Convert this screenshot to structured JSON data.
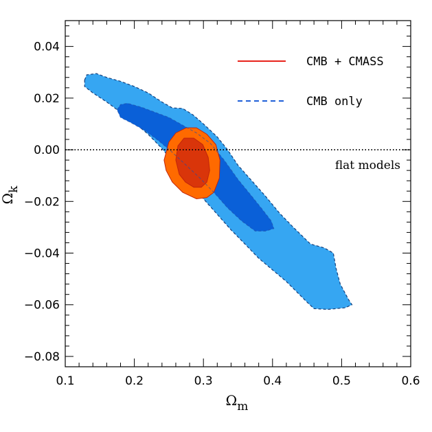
{
  "chart_data": {
    "type": "contour",
    "xlabel": {
      "symbol": "Ω",
      "subscript": "m"
    },
    "ylabel": {
      "symbol": "Ω",
      "subscript": "k"
    },
    "xlim": [
      0.1,
      0.6
    ],
    "ylim": [
      -0.084,
      0.05
    ],
    "xticks": [
      0.1,
      0.2,
      0.3,
      0.4,
      0.5,
      0.6
    ],
    "yticks": [
      -0.08,
      -0.06,
      -0.04,
      -0.02,
      0.0,
      0.02,
      0.04
    ],
    "xtick_labels": [
      "0.1",
      "0.2",
      "0.3",
      "0.4",
      "0.5",
      "0.6"
    ],
    "ytick_labels": [
      "−0.08",
      "−0.06",
      "−0.04",
      "−0.02",
      "0.00",
      "0.02",
      "0.04"
    ],
    "grid": false,
    "legend": {
      "position": "top-right",
      "entries": [
        {
          "label": "CMB + CMASS",
          "style": "solid",
          "color": "#e8221a"
        },
        {
          "label": "CMB only",
          "style": "dashed",
          "color": "#1f5fd8"
        }
      ]
    },
    "reference_line": {
      "y": 0.0,
      "style": "dotted",
      "label": "flat models"
    },
    "series": [
      {
        "name": "CMB only",
        "levels": [
          {
            "level": "outer",
            "color": "#36a6f2",
            "outline": "dashed",
            "polygon": [
              [
                0.128,
                0.027
              ],
              [
                0.131,
                0.029
              ],
              [
                0.145,
                0.0295
              ],
              [
                0.16,
                0.028
              ],
              [
                0.18,
                0.0265
              ],
              [
                0.2,
                0.0245
              ],
              [
                0.22,
                0.022
              ],
              [
                0.24,
                0.0185
              ],
              [
                0.255,
                0.0162
              ],
              [
                0.27,
                0.016
              ],
              [
                0.285,
                0.0135
              ],
              [
                0.3,
                0.01
              ],
              [
                0.32,
                0.005
              ],
              [
                0.335,
                0.0
              ],
              [
                0.35,
                -0.006
              ],
              [
                0.37,
                -0.012
              ],
              [
                0.39,
                -0.018
              ],
              [
                0.41,
                -0.0245
              ],
              [
                0.43,
                -0.03
              ],
              [
                0.455,
                -0.0365
              ],
              [
                0.475,
                -0.038
              ],
              [
                0.488,
                -0.04
              ],
              [
                0.492,
                -0.046
              ],
              [
                0.498,
                -0.052
              ],
              [
                0.51,
                -0.058
              ],
              [
                0.515,
                -0.06
              ],
              [
                0.505,
                -0.0612
              ],
              [
                0.48,
                -0.0618
              ],
              [
                0.46,
                -0.0615
              ],
              [
                0.45,
                -0.059
              ],
              [
                0.435,
                -0.055
              ],
              [
                0.42,
                -0.051
              ],
              [
                0.4,
                -0.0465
              ],
              [
                0.38,
                -0.042
              ],
              [
                0.36,
                -0.0365
              ],
              [
                0.34,
                -0.031
              ],
              [
                0.32,
                -0.025
              ],
              [
                0.3,
                -0.019
              ],
              [
                0.28,
                -0.0125
              ],
              [
                0.26,
                -0.006
              ],
              [
                0.24,
                0.0005
              ],
              [
                0.22,
                0.006
              ],
              [
                0.2,
                0.0105
              ],
              [
                0.18,
                0.0145
              ],
              [
                0.16,
                0.0185
              ],
              [
                0.14,
                0.022
              ],
              [
                0.128,
                0.0245
              ]
            ]
          },
          {
            "level": "inner",
            "color": "#0a60d8",
            "outline": "none",
            "polygon": [
              [
                0.175,
                0.0155
              ],
              [
                0.18,
                0.0175
              ],
              [
                0.19,
                0.018
              ],
              [
                0.21,
                0.0165
              ],
              [
                0.23,
                0.0145
              ],
              [
                0.25,
                0.0125
              ],
              [
                0.27,
                0.0095
              ],
              [
                0.29,
                0.0065
              ],
              [
                0.31,
                0.0025
              ],
              [
                0.33,
                -0.004
              ],
              [
                0.35,
                -0.0115
              ],
              [
                0.37,
                -0.018
              ],
              [
                0.385,
                -0.023
              ],
              [
                0.398,
                -0.0275
              ],
              [
                0.402,
                -0.0305
              ],
              [
                0.39,
                -0.0315
              ],
              [
                0.375,
                -0.0315
              ],
              [
                0.355,
                -0.0275
              ],
              [
                0.335,
                -0.0225
              ],
              [
                0.315,
                -0.0165
              ],
              [
                0.295,
                -0.011
              ],
              [
                0.275,
                -0.006
              ],
              [
                0.255,
                -0.001
              ],
              [
                0.235,
                0.0035
              ],
              [
                0.215,
                0.0075
              ],
              [
                0.195,
                0.0105
              ],
              [
                0.18,
                0.0125
              ]
            ]
          }
        ]
      },
      {
        "name": "CMB + CMASS",
        "levels": [
          {
            "level": "outer",
            "color": "#ff6a00",
            "outline": "solid",
            "polygon": [
              [
                0.243,
                -0.004
              ],
              [
                0.25,
                0.003
              ],
              [
                0.26,
                0.0065
              ],
              [
                0.275,
                0.0085
              ],
              [
                0.29,
                0.0085
              ],
              [
                0.305,
                0.006
              ],
              [
                0.318,
                0.002
              ],
              [
                0.324,
                -0.004
              ],
              [
                0.323,
                -0.011
              ],
              [
                0.315,
                -0.0165
              ],
              [
                0.305,
                -0.0185
              ],
              [
                0.29,
                -0.019
              ],
              [
                0.27,
                -0.0165
              ],
              [
                0.255,
                -0.0125
              ],
              [
                0.246,
                -0.008
              ]
            ]
          },
          {
            "level": "inner",
            "color": "#d9350a",
            "outline": "solid",
            "polygon": [
              [
                0.26,
                -0.004
              ],
              [
                0.263,
                0.0015
              ],
              [
                0.272,
                0.0045
              ],
              [
                0.286,
                0.0045
              ],
              [
                0.299,
                0.002
              ],
              [
                0.307,
                -0.003
              ],
              [
                0.309,
                -0.008
              ],
              [
                0.305,
                -0.0125
              ],
              [
                0.297,
                -0.0145
              ],
              [
                0.286,
                -0.0145
              ],
              [
                0.274,
                -0.0125
              ],
              [
                0.265,
                -0.0095
              ]
            ]
          }
        ]
      }
    ]
  }
}
